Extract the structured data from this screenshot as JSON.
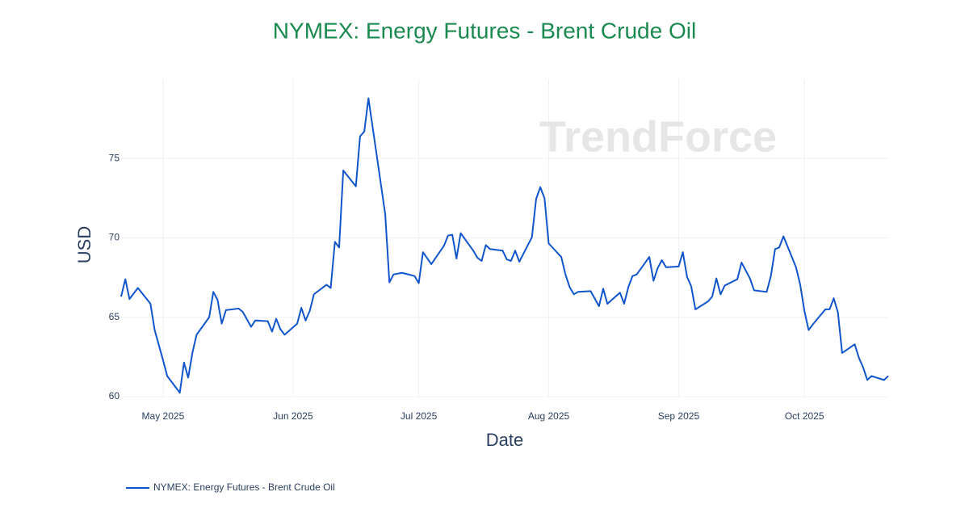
{
  "chart_data": {
    "type": "line",
    "title": "NYMEX: Energy Futures - Brent Crude Oil",
    "x_label": "Date",
    "y_label": "USD",
    "watermark": "TrendForce",
    "grid": true,
    "legend_position": "bottom-left",
    "title_color": "#1b8a50",
    "xlim": [
      111,
      294
    ],
    "xticks": [
      {
        "value": 121,
        "label": "May 2025"
      },
      {
        "value": 152,
        "label": "Jun 2025"
      },
      {
        "value": 182,
        "label": "Jul 2025"
      },
      {
        "value": 213,
        "label": "Aug 2025"
      },
      {
        "value": 244,
        "label": "Sep 2025"
      },
      {
        "value": 274,
        "label": "Oct 2025"
      }
    ],
    "ylim": [
      60,
      80
    ],
    "yticks": [
      60,
      65,
      70,
      75
    ],
    "x": [
      111,
      112,
      113,
      115,
      118,
      119,
      121,
      122,
      125,
      126,
      127,
      128,
      129,
      132,
      133,
      134,
      135,
      136,
      139,
      140,
      142,
      143,
      146,
      147,
      148,
      149,
      150,
      153,
      154,
      155,
      156,
      157,
      160,
      161,
      162,
      163,
      164,
      167,
      168,
      169,
      170,
      174,
      175,
      176,
      178,
      181,
      182,
      183,
      185,
      188,
      189,
      190,
      191,
      192,
      195,
      196,
      197,
      198,
      199,
      202,
      203,
      204,
      205,
      206,
      209,
      210,
      211,
      212,
      213,
      216,
      217,
      218,
      219,
      220,
      223,
      225,
      226,
      227,
      230,
      231,
      232,
      233,
      234,
      237,
      238,
      239,
      240,
      241,
      244,
      245,
      246,
      247,
      248,
      251,
      252,
      253,
      254,
      255,
      258,
      259,
      261,
      262,
      265,
      266,
      267,
      268,
      269,
      272,
      273,
      274,
      275,
      276,
      279,
      280,
      281,
      282,
      283,
      286,
      287,
      288,
      289,
      290,
      293,
      294
    ],
    "series": [
      {
        "name": "NYMEX: Energy Futures - Brent Crude Oil",
        "color": "#1155cc",
        "values": [
          66.3,
          67.4,
          66.15,
          66.85,
          65.85,
          64.2,
          62.3,
          61.3,
          60.25,
          62.15,
          61.2,
          62.75,
          63.9,
          65.0,
          66.6,
          66.1,
          64.6,
          65.45,
          65.55,
          65.35,
          64.4,
          64.8,
          64.75,
          64.1,
          64.9,
          64.25,
          63.9,
          64.6,
          65.6,
          64.8,
          65.4,
          66.45,
          67.05,
          66.85,
          69.75,
          69.4,
          74.25,
          73.25,
          76.4,
          76.7,
          78.8,
          71.5,
          67.2,
          67.7,
          67.8,
          67.6,
          67.15,
          69.1,
          68.35,
          69.5,
          70.15,
          70.2,
          68.7,
          70.3,
          69.2,
          68.75,
          68.55,
          69.55,
          69.3,
          69.2,
          68.65,
          68.55,
          69.2,
          68.5,
          70.05,
          72.45,
          73.2,
          72.5,
          69.65,
          68.8,
          67.7,
          66.9,
          66.45,
          66.6,
          66.65,
          65.7,
          66.8,
          65.85,
          66.55,
          65.85,
          66.9,
          67.6,
          67.7,
          68.8,
          67.3,
          68.1,
          68.6,
          68.15,
          68.2,
          69.1,
          67.55,
          66.95,
          65.5,
          66.0,
          66.3,
          67.45,
          66.45,
          67.0,
          67.4,
          68.45,
          67.45,
          66.7,
          66.6,
          67.6,
          69.3,
          69.4,
          70.1,
          68.15,
          67.05,
          65.4,
          64.2,
          64.55,
          65.5,
          65.5,
          66.2,
          65.3,
          62.75,
          63.3,
          62.45,
          61.85,
          61.05,
          61.3,
          61.05,
          61.3
        ]
      }
    ]
  }
}
